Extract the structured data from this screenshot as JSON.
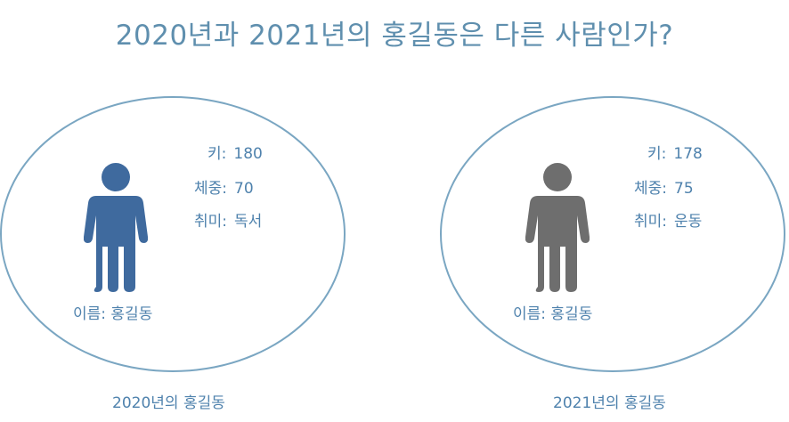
{
  "title": "2020년과 2021년의 홍길동은 다른 사람인가?",
  "colors": {
    "person_2020": "#3f6a9e",
    "person_2021": "#6e6e6e",
    "ellipse_border": "#7aa6c2",
    "text": "#4f82ad",
    "title": "#5f8fae"
  },
  "panels": [
    {
      "caption": "2020년의 홍길동",
      "icon": "person-icon",
      "name": "이름: 홍길동",
      "attributes": [
        {
          "label": "키:",
          "value": "180"
        },
        {
          "label": "체중:",
          "value": "70"
        },
        {
          "label": "취미:",
          "value": "독서"
        }
      ]
    },
    {
      "caption": "2021년의 홍길동",
      "icon": "person-icon",
      "name": "이름: 홍길동",
      "attributes": [
        {
          "label": "키:",
          "value": "178"
        },
        {
          "label": "체중:",
          "value": "75"
        },
        {
          "label": "취미:",
          "value": "운동"
        }
      ]
    }
  ]
}
